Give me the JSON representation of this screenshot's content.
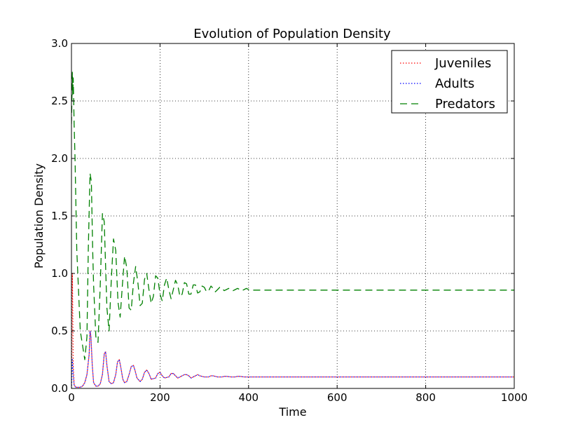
{
  "chart_data": {
    "type": "line",
    "title": "Evolution of Population Density",
    "xlabel": "Time",
    "ylabel": "Population Density",
    "xlim": [
      0,
      1000
    ],
    "ylim": [
      0.0,
      3.0
    ],
    "xticks": [
      0,
      200,
      400,
      600,
      800,
      1000
    ],
    "xtick_labels": [
      "0",
      "200",
      "400",
      "600",
      "800",
      "1000"
    ],
    "yticks": [
      0.0,
      0.5,
      1.0,
      1.5,
      2.0,
      2.5,
      3.0
    ],
    "ytick_labels": [
      "0.0",
      "0.5",
      "1.0",
      "1.5",
      "2.0",
      "2.5",
      "3.0"
    ],
    "grid": true,
    "legend_position": "top-right",
    "series": [
      {
        "name": "Juveniles",
        "color": "#ff0000",
        "style": "dotted",
        "x": [
          0,
          2,
          4,
          6,
          10,
          15,
          20,
          25,
          30,
          35,
          40,
          42,
          44,
          47,
          50,
          55,
          60,
          65,
          70,
          74,
          77,
          80,
          85,
          90,
          95,
          100,
          104,
          108,
          112,
          116,
          120,
          125,
          130,
          135,
          140,
          144,
          148,
          155,
          160,
          165,
          170,
          175,
          180,
          190,
          195,
          200,
          205,
          210,
          220,
          225,
          230,
          235,
          240,
          250,
          255,
          260,
          265,
          270,
          280,
          285,
          290,
          300,
          310,
          315,
          320,
          330,
          340,
          345,
          350,
          360,
          370,
          375,
          380,
          390,
          400,
          420,
          450,
          500,
          600,
          700,
          800,
          1000
        ],
        "y": [
          0.0,
          1.0,
          0.2,
          0.03,
          0.01,
          0.01,
          0.01,
          0.02,
          0.05,
          0.12,
          0.3,
          0.5,
          0.45,
          0.2,
          0.05,
          0.02,
          0.02,
          0.04,
          0.12,
          0.3,
          0.32,
          0.2,
          0.06,
          0.04,
          0.05,
          0.12,
          0.23,
          0.25,
          0.17,
          0.08,
          0.05,
          0.06,
          0.12,
          0.19,
          0.2,
          0.15,
          0.09,
          0.06,
          0.08,
          0.14,
          0.16,
          0.13,
          0.08,
          0.09,
          0.13,
          0.14,
          0.11,
          0.09,
          0.1,
          0.13,
          0.13,
          0.11,
          0.09,
          0.11,
          0.12,
          0.12,
          0.11,
          0.09,
          0.11,
          0.12,
          0.11,
          0.1,
          0.1,
          0.11,
          0.11,
          0.1,
          0.1,
          0.105,
          0.105,
          0.1,
          0.1,
          0.105,
          0.105,
          0.1,
          0.1,
          0.1,
          0.1,
          0.1,
          0.1,
          0.1,
          0.1,
          0.1
        ]
      },
      {
        "name": "Adults",
        "color": "#0000ff",
        "style": "dotted",
        "x": [
          0,
          2,
          4,
          6,
          10,
          15,
          20,
          25,
          30,
          35,
          40,
          42,
          44,
          47,
          50,
          55,
          60,
          65,
          70,
          74,
          77,
          80,
          85,
          90,
          95,
          100,
          104,
          108,
          112,
          116,
          120,
          125,
          130,
          135,
          140,
          144,
          148,
          155,
          160,
          165,
          170,
          175,
          180,
          190,
          195,
          200,
          205,
          210,
          220,
          225,
          230,
          235,
          240,
          250,
          255,
          260,
          265,
          270,
          280,
          285,
          290,
          300,
          310,
          315,
          320,
          330,
          340,
          345,
          350,
          360,
          370,
          375,
          380,
          390,
          400,
          420,
          450,
          500,
          600,
          700,
          800,
          1000
        ],
        "y": [
          0.0,
          0.25,
          0.12,
          0.03,
          0.01,
          0.01,
          0.01,
          0.02,
          0.05,
          0.12,
          0.3,
          0.5,
          0.45,
          0.2,
          0.05,
          0.02,
          0.02,
          0.04,
          0.12,
          0.3,
          0.32,
          0.2,
          0.06,
          0.04,
          0.05,
          0.12,
          0.23,
          0.25,
          0.17,
          0.08,
          0.05,
          0.06,
          0.12,
          0.19,
          0.2,
          0.15,
          0.09,
          0.06,
          0.08,
          0.14,
          0.16,
          0.13,
          0.08,
          0.09,
          0.13,
          0.14,
          0.11,
          0.09,
          0.1,
          0.13,
          0.13,
          0.11,
          0.09,
          0.11,
          0.12,
          0.12,
          0.11,
          0.09,
          0.11,
          0.12,
          0.11,
          0.1,
          0.1,
          0.11,
          0.11,
          0.1,
          0.1,
          0.105,
          0.105,
          0.1,
          0.1,
          0.105,
          0.105,
          0.1,
          0.1,
          0.1,
          0.1,
          0.1,
          0.1,
          0.1,
          0.1,
          0.1
        ]
      },
      {
        "name": "Predators",
        "color": "#008000",
        "style": "dashed",
        "x": [
          0,
          2,
          3,
          4,
          5,
          6,
          8,
          12,
          20,
          30,
          35,
          38,
          42,
          45,
          48,
          50,
          55,
          60,
          65,
          70,
          74,
          78,
          80,
          85,
          90,
          95,
          100,
          105,
          110,
          115,
          120,
          125,
          130,
          135,
          140,
          145,
          150,
          155,
          160,
          165,
          170,
          175,
          180,
          185,
          190,
          195,
          200,
          205,
          210,
          215,
          220,
          225,
          230,
          235,
          240,
          245,
          250,
          255,
          260,
          265,
          270,
          275,
          280,
          285,
          290,
          295,
          300,
          305,
          310,
          315,
          320,
          325,
          330,
          335,
          340,
          345,
          350,
          355,
          360,
          365,
          370,
          375,
          380,
          385,
          390,
          395,
          400,
          410,
          420,
          430,
          440,
          450,
          460,
          480,
          500,
          550,
          600,
          700,
          800,
          1000
        ],
        "y": [
          2.3,
          2.75,
          2.55,
          2.7,
          2.5,
          2.3,
          2.0,
          1.2,
          0.5,
          0.25,
          0.45,
          1.2,
          1.87,
          1.8,
          1.2,
          0.9,
          0.45,
          0.4,
          0.9,
          1.52,
          1.45,
          0.95,
          0.7,
          0.5,
          0.95,
          1.3,
          1.2,
          0.75,
          0.62,
          0.9,
          1.15,
          1.05,
          0.7,
          0.68,
          0.92,
          1.06,
          0.92,
          0.72,
          0.74,
          0.95,
          1.0,
          0.86,
          0.74,
          0.8,
          0.98,
          0.96,
          0.82,
          0.76,
          0.9,
          0.96,
          0.86,
          0.78,
          0.86,
          0.94,
          0.9,
          0.8,
          0.82,
          0.92,
          0.91,
          0.82,
          0.82,
          0.9,
          0.9,
          0.83,
          0.84,
          0.89,
          0.88,
          0.84,
          0.85,
          0.89,
          0.87,
          0.84,
          0.86,
          0.88,
          0.87,
          0.85,
          0.86,
          0.87,
          0.86,
          0.85,
          0.86,
          0.87,
          0.86,
          0.85,
          0.86,
          0.87,
          0.86,
          0.855,
          0.855,
          0.855,
          0.855,
          0.855,
          0.855,
          0.855,
          0.855,
          0.855,
          0.855,
          0.855,
          0.855,
          0.855
        ]
      }
    ]
  }
}
